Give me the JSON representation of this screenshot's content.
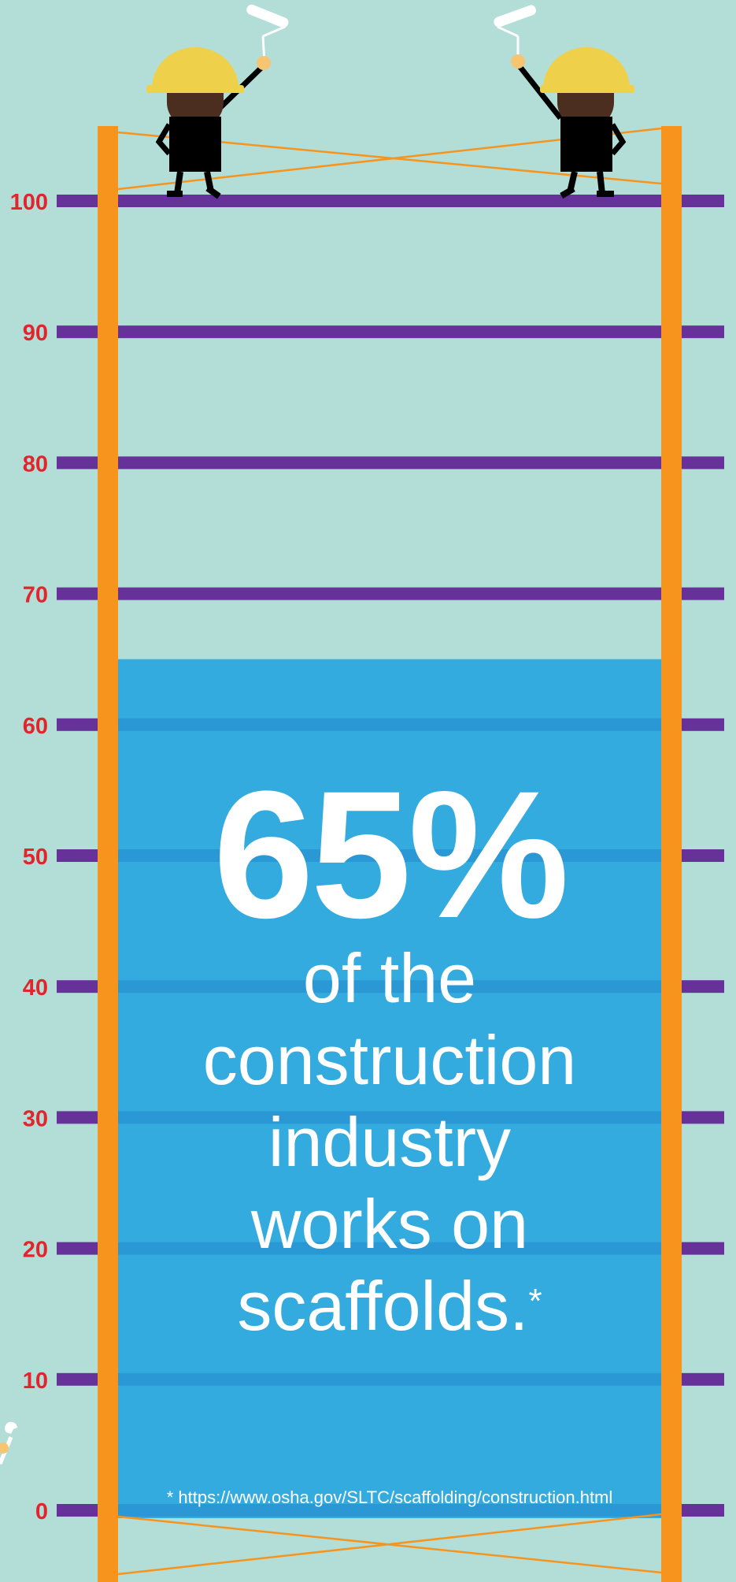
{
  "colors": {
    "background": "#b2ded7",
    "rung": "#66329a",
    "post": "#f7941d",
    "fill": "#34abdf",
    "fill_rung": "#2a98d4",
    "tick_label": "#e0262c",
    "text": "#ffffff"
  },
  "chart_data": {
    "type": "bar",
    "categories": [
      "construction industry"
    ],
    "values": [
      65
    ],
    "ylim": [
      0,
      100
    ],
    "yticks": [
      "0",
      "10",
      "20",
      "30",
      "40",
      "50",
      "60",
      "70",
      "80",
      "90",
      "100"
    ],
    "grid": true
  },
  "headline": {
    "value": "65%",
    "line1": "of the",
    "line2": "construction",
    "line3": "industry",
    "line4": "works on",
    "line5": "scaffolds.",
    "marker": "*"
  },
  "footnote": "* https://www.osha.gov/SLTC/scaffolding/construction.html",
  "icons": [
    "worker-left-icon",
    "worker-right-icon",
    "paint-roller-icon",
    "wrench-icon"
  ]
}
